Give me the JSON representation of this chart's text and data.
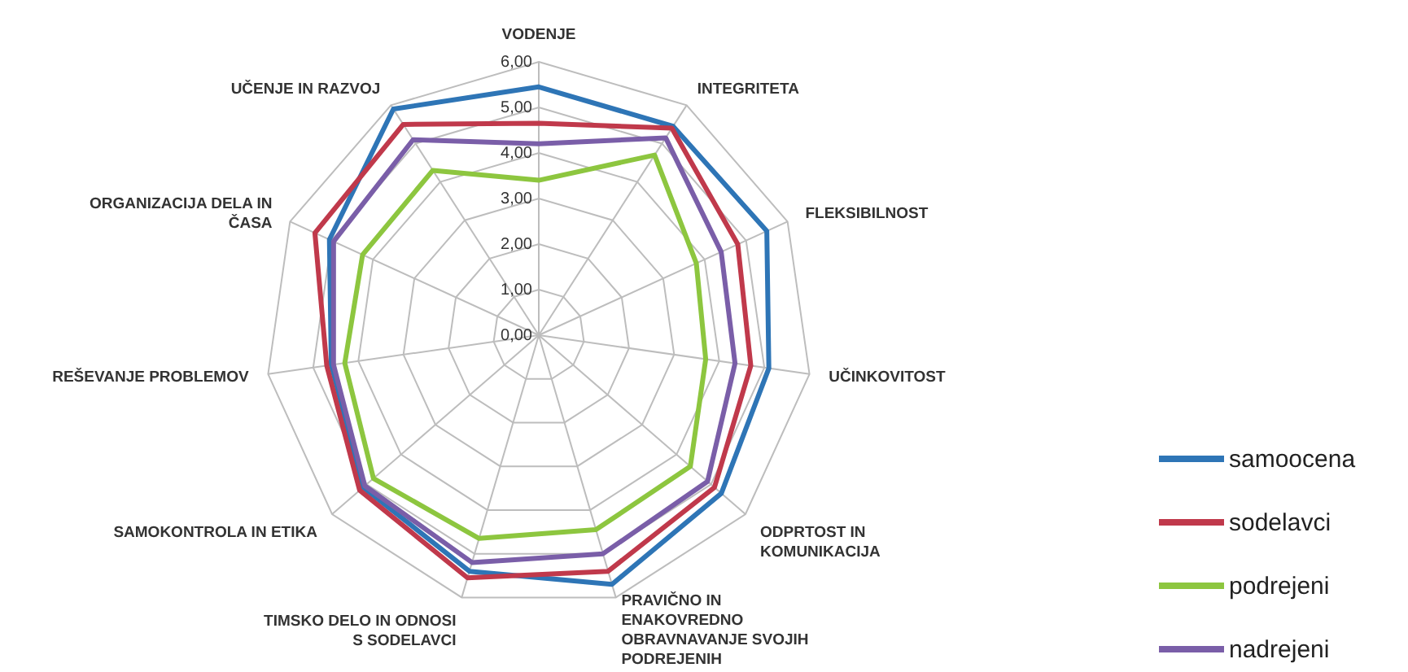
{
  "chart_data": {
    "type": "radar",
    "categories": [
      "VODENJE",
      "INTEGRITETA",
      "FLEKSIBILNOST",
      "UČINKOVITOST",
      "ODPRTOST IN KOMUNIKACIJA",
      "PRAVIČNO IN ENAKOVREDNO OBRAVNAVANJE SVOJIH PODREJENIH",
      "TIMSKO DELO IN ODNOSI S SODELAVCI",
      "SAMOKONTROLA IN ETIKA",
      "REŠEVANJE PROBLEMOV",
      "ORGANIZACIJA DELA IN ČASA",
      "UČENJE IN RAZVOJ"
    ],
    "series": [
      {
        "name": "samoocena",
        "color": "#2e75b6",
        "values": [
          5.45,
          5.45,
          5.5,
          5.1,
          5.3,
          5.7,
          5.4,
          5.1,
          4.6,
          5.05,
          5.9
        ]
      },
      {
        "name": "sodelavci",
        "color": "#c0394b",
        "values": [
          4.65,
          5.4,
          4.8,
          4.7,
          5.1,
          5.4,
          5.55,
          5.2,
          4.7,
          5.4,
          5.5
        ]
      },
      {
        "name": "podrejeni",
        "color": "#8dc63f",
        "values": [
          3.4,
          4.7,
          3.8,
          3.7,
          4.4,
          4.45,
          4.65,
          4.8,
          4.3,
          4.25,
          4.3
        ]
      },
      {
        "name": "nadrejeni",
        "color": "#7a5ea8",
        "values": [
          4.2,
          5.15,
          4.4,
          4.35,
          4.9,
          5.0,
          5.2,
          5.05,
          4.55,
          4.95,
          5.1
        ]
      }
    ],
    "ylim": [
      0,
      6
    ],
    "yticks": [
      {
        "value": 0,
        "label": "0,00"
      },
      {
        "value": 1,
        "label": "1,00"
      },
      {
        "value": 2,
        "label": "2,00"
      },
      {
        "value": 3,
        "label": "3,00"
      },
      {
        "value": 4,
        "label": "4,00"
      },
      {
        "value": 5,
        "label": "5,00"
      },
      {
        "value": 6,
        "label": "6,00"
      }
    ],
    "grid": true,
    "legend": "right",
    "marker": "none",
    "line_style": "solid"
  }
}
